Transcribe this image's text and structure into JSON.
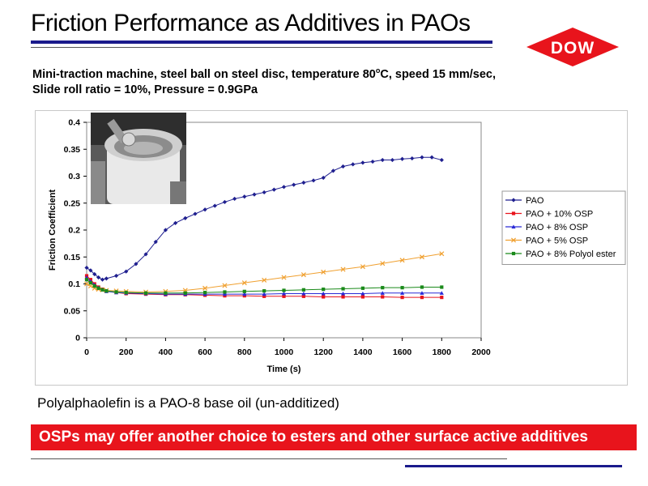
{
  "slide": {
    "title": "Friction Performance as Additives in PAOs",
    "logo_text": "DOW",
    "subtitle_line1": "Mini-traction machine, steel ball on steel disc, temperature 80",
    "subtitle_sup": "o",
    "subtitle_line1_end": "C, speed 15 mm/sec,",
    "subtitle_line2": "Slide roll ratio = 10%, Pressure = 0.9GPa",
    "note": "Polyalphaolefin is a PAO-8 base oil (un-additized)",
    "banner": "OSPs may offer another choice to esters and other surface active additives",
    "colors": {
      "brand_red": "#e8141c",
      "title_rule": "#1a1a8c"
    }
  },
  "chart_data": {
    "type": "line",
    "title": "",
    "xlabel": "Time (s)",
    "ylabel": "Friction Coefficient",
    "xlim": [
      0,
      2000
    ],
    "ylim": [
      0,
      0.4
    ],
    "xticks": [
      0,
      200,
      400,
      600,
      800,
      1000,
      1200,
      1400,
      1600,
      1800,
      2000
    ],
    "yticks": [
      0,
      0.05,
      0.1,
      0.15,
      0.2,
      0.25,
      0.3,
      0.35,
      0.4
    ],
    "ytick_labels": [
      "0",
      "0.05",
      "0.1",
      "0.15",
      "0.2",
      "0.25",
      "0.3",
      "0.35",
      "0.4"
    ],
    "legend_position": "right",
    "grid": false,
    "series": [
      {
        "name": "PAO",
        "color": "#1f1f8f",
        "marker": "diamond",
        "x": [
          0,
          20,
          40,
          60,
          80,
          100,
          150,
          200,
          250,
          300,
          350,
          400,
          450,
          500,
          550,
          600,
          650,
          700,
          750,
          800,
          850,
          900,
          950,
          1000,
          1050,
          1100,
          1150,
          1200,
          1250,
          1300,
          1350,
          1400,
          1450,
          1500,
          1550,
          1600,
          1650,
          1700,
          1750,
          1800
        ],
        "y": [
          0.13,
          0.125,
          0.118,
          0.112,
          0.108,
          0.11,
          0.115,
          0.123,
          0.137,
          0.155,
          0.178,
          0.2,
          0.213,
          0.222,
          0.23,
          0.238,
          0.245,
          0.252,
          0.258,
          0.262,
          0.266,
          0.27,
          0.275,
          0.28,
          0.284,
          0.288,
          0.292,
          0.297,
          0.31,
          0.318,
          0.322,
          0.325,
          0.327,
          0.33,
          0.33,
          0.332,
          0.333,
          0.335,
          0.335,
          0.33
        ]
      },
      {
        "name": "PAO + 10% OSP",
        "color": "#e8141c",
        "marker": "square",
        "x": [
          0,
          20,
          40,
          60,
          80,
          100,
          150,
          200,
          300,
          400,
          500,
          600,
          700,
          800,
          900,
          1000,
          1100,
          1200,
          1300,
          1400,
          1500,
          1600,
          1700,
          1800
        ],
        "y": [
          0.115,
          0.108,
          0.1,
          0.094,
          0.09,
          0.087,
          0.084,
          0.082,
          0.081,
          0.08,
          0.08,
          0.079,
          0.078,
          0.078,
          0.077,
          0.077,
          0.077,
          0.076,
          0.076,
          0.076,
          0.076,
          0.075,
          0.075,
          0.075
        ]
      },
      {
        "name": "PAO + 8% OSP",
        "color": "#2a2ad6",
        "marker": "triangle",
        "x": [
          0,
          20,
          40,
          60,
          80,
          100,
          150,
          200,
          300,
          400,
          500,
          600,
          700,
          800,
          900,
          1000,
          1100,
          1200,
          1300,
          1400,
          1500,
          1600,
          1700,
          1800
        ],
        "y": [
          0.112,
          0.105,
          0.098,
          0.093,
          0.089,
          0.086,
          0.084,
          0.083,
          0.082,
          0.081,
          0.081,
          0.081,
          0.081,
          0.081,
          0.081,
          0.082,
          0.082,
          0.082,
          0.082,
          0.082,
          0.083,
          0.083,
          0.083,
          0.083
        ]
      },
      {
        "name": "PAO + 5% OSP",
        "color": "#f0a030",
        "marker": "x",
        "x": [
          0,
          20,
          40,
          60,
          80,
          100,
          150,
          200,
          300,
          400,
          500,
          600,
          700,
          800,
          900,
          1000,
          1100,
          1200,
          1300,
          1400,
          1500,
          1600,
          1700,
          1800
        ],
        "y": [
          0.1,
          0.096,
          0.092,
          0.09,
          0.089,
          0.088,
          0.087,
          0.086,
          0.085,
          0.086,
          0.088,
          0.092,
          0.097,
          0.102,
          0.107,
          0.112,
          0.117,
          0.122,
          0.127,
          0.132,
          0.138,
          0.144,
          0.15,
          0.156
        ]
      },
      {
        "name": "PAO + 8% Polyol ester",
        "color": "#1a8a1a",
        "marker": "square",
        "x": [
          0,
          20,
          40,
          60,
          80,
          100,
          150,
          200,
          300,
          400,
          500,
          600,
          700,
          800,
          900,
          1000,
          1100,
          1200,
          1300,
          1400,
          1500,
          1600,
          1700,
          1800
        ],
        "y": [
          0.108,
          0.102,
          0.096,
          0.092,
          0.089,
          0.087,
          0.085,
          0.084,
          0.083,
          0.083,
          0.083,
          0.084,
          0.085,
          0.086,
          0.087,
          0.088,
          0.089,
          0.09,
          0.091,
          0.092,
          0.093,
          0.093,
          0.094,
          0.094
        ]
      }
    ]
  }
}
